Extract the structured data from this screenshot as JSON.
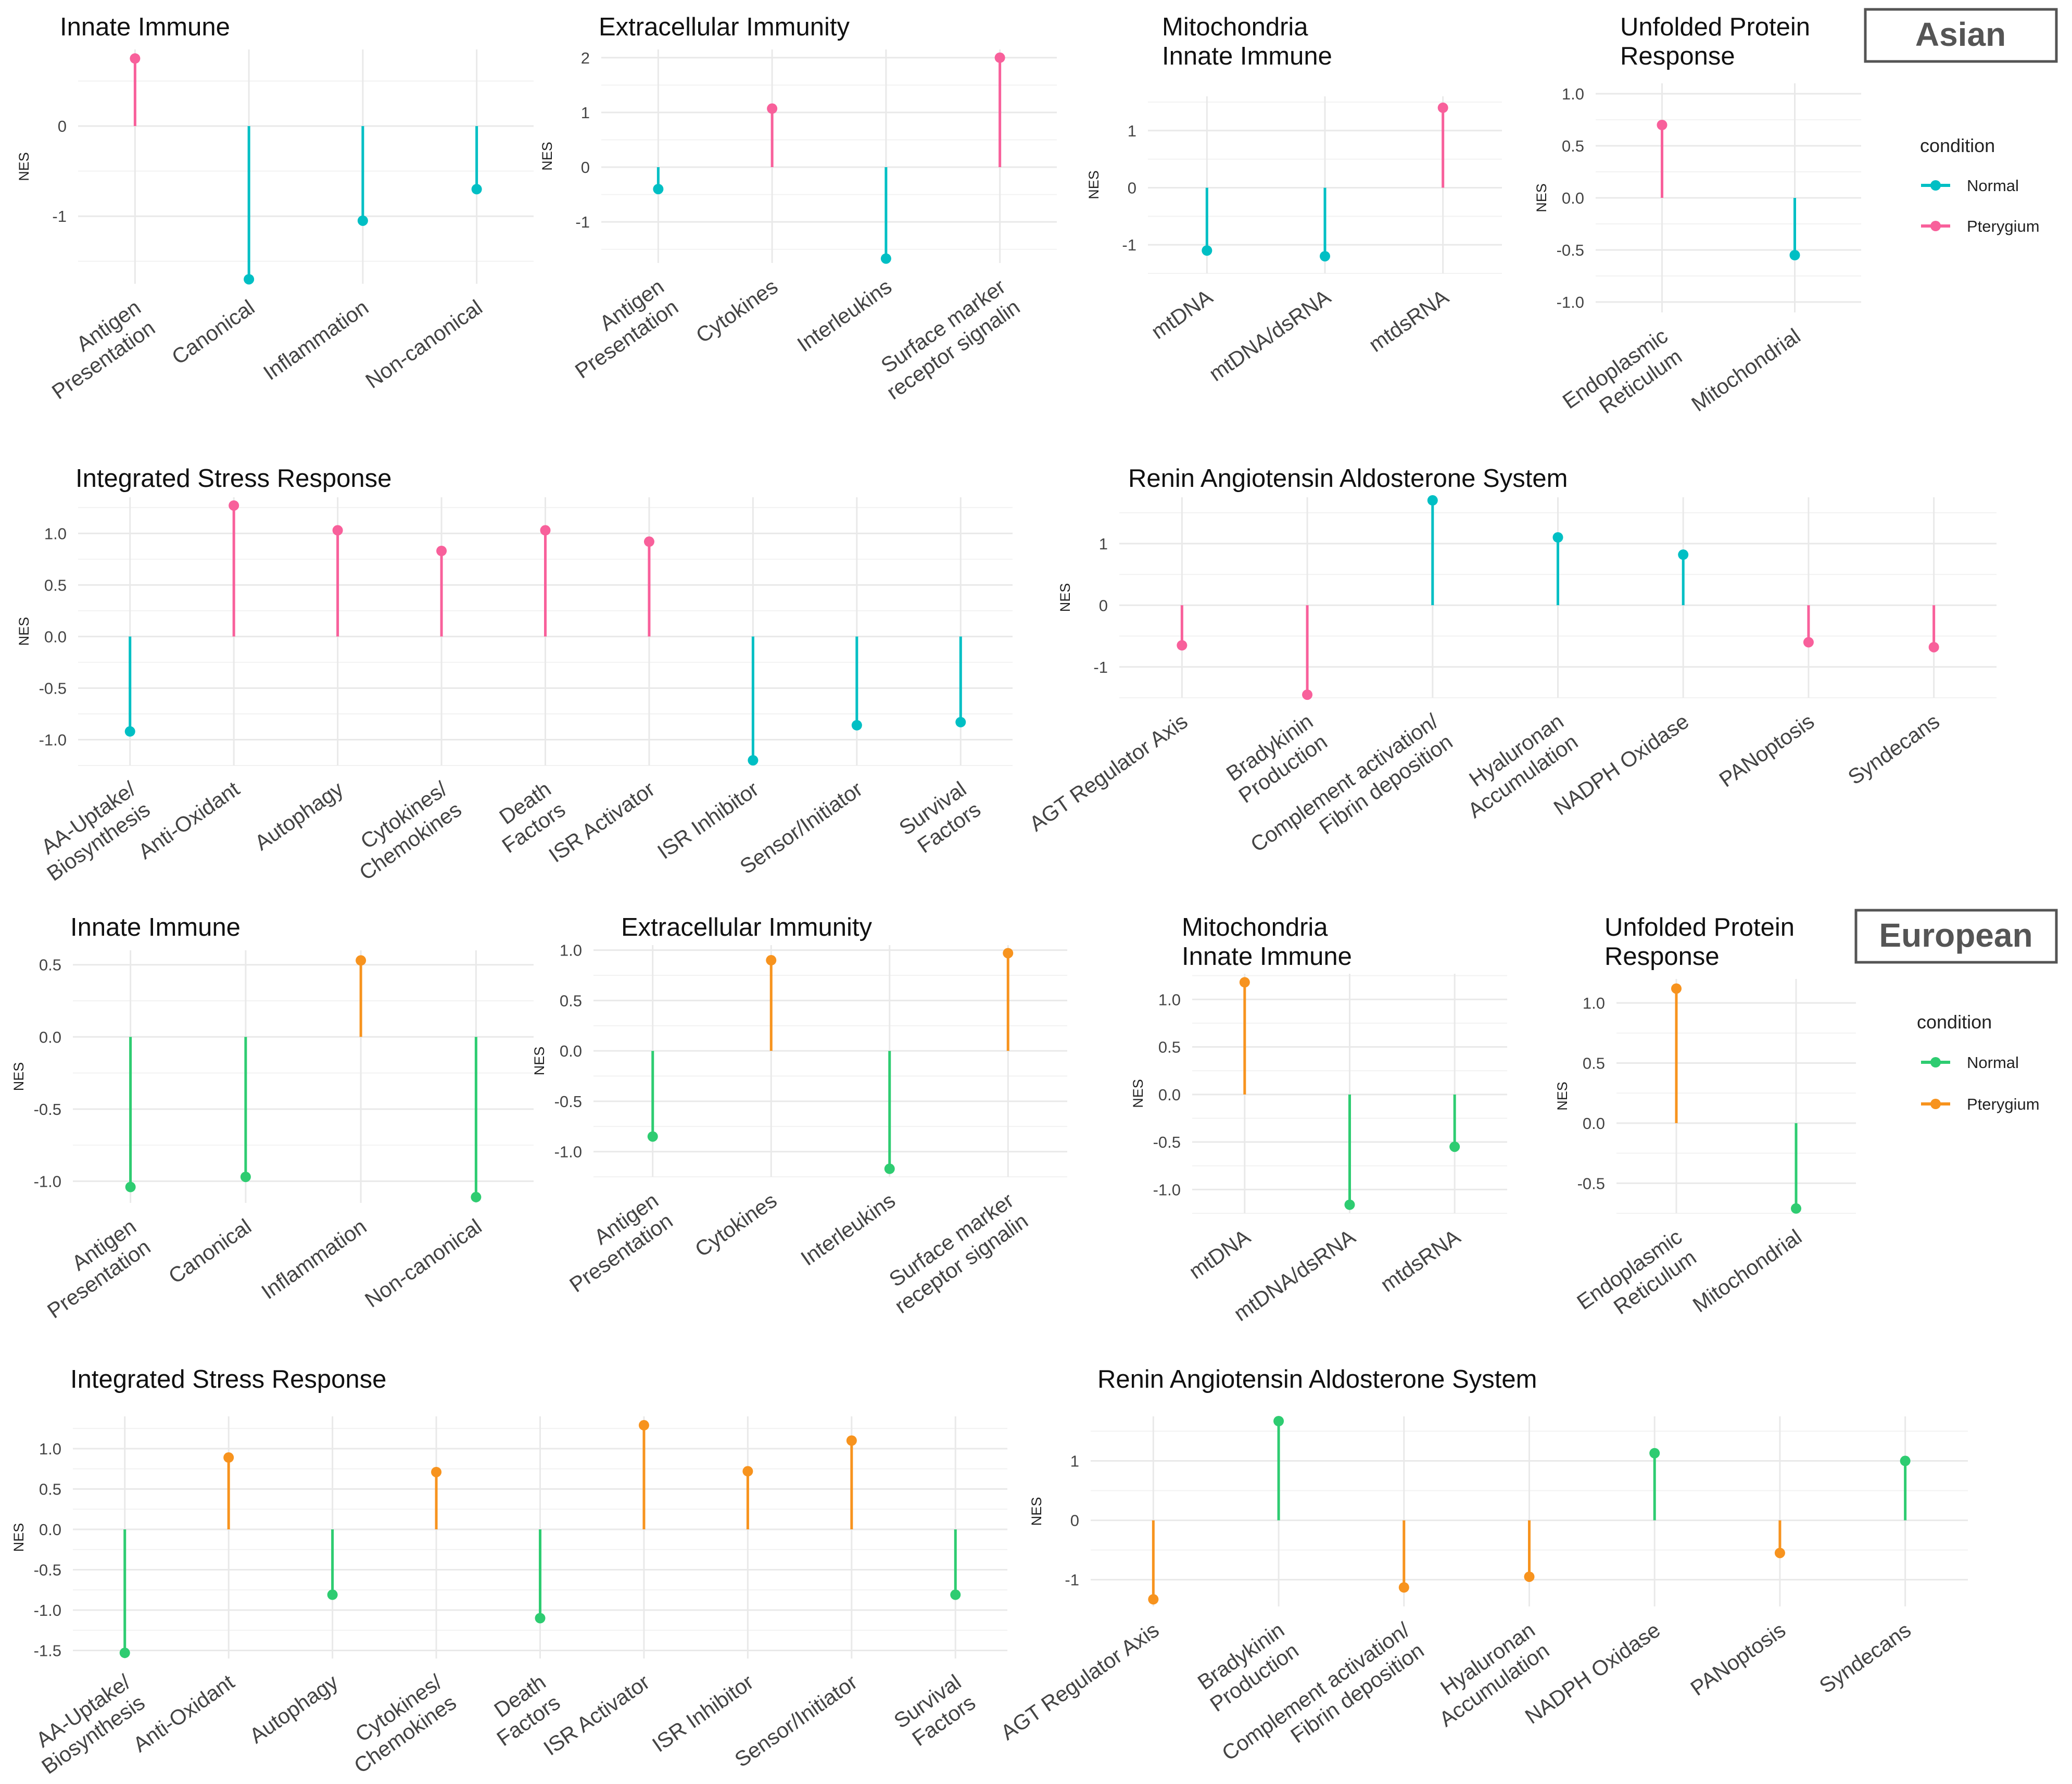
{
  "colors": {
    "asian_normal": "#00bfc4",
    "asian_pterygium": "#f8609b",
    "european_normal": "#2ecc71",
    "european_pterygium": "#f7931e",
    "grid": "#e9e9e9",
    "text": "#222222",
    "tick_text": "#444444"
  },
  "groups": [
    {
      "label": "Asian",
      "legend": {
        "title": "condition",
        "items": [
          "Normal",
          "Pterygium"
        ]
      }
    },
    {
      "label": "European",
      "legend": {
        "title": "condition",
        "items": [
          "Normal",
          "Pterygium"
        ]
      }
    }
  ],
  "chart_data": [
    {
      "type": "lollipop",
      "group": "Asian",
      "title": [
        "Innate Immune"
      ],
      "ylabel": "NES",
      "categories": [
        [
          "Antigen",
          "Presentation"
        ],
        [
          "Canonical"
        ],
        [
          "Inflammation"
        ],
        [
          "Non-canonical"
        ]
      ],
      "values": [
        0.75,
        -1.7,
        -1.05,
        -0.7
      ],
      "condition": [
        "Pterygium",
        "Normal",
        "Normal",
        "Normal"
      ],
      "ylim": [
        -1.75,
        0.85
      ],
      "yticks": [
        0,
        -1
      ],
      "ytick_labels": [
        "0",
        "-1"
      ]
    },
    {
      "type": "lollipop",
      "group": "Asian",
      "title": [
        "Extracellular Immunity"
      ],
      "ylabel": "NES",
      "categories": [
        [
          "Antigen",
          "Presentation"
        ],
        [
          "Cytokines"
        ],
        [
          "Interleukins"
        ],
        [
          "Surface marker",
          "receptor signalin"
        ]
      ],
      "values": [
        -0.4,
        1.07,
        -1.67,
        2.0
      ],
      "condition": [
        "Normal",
        "Pterygium",
        "Normal",
        "Pterygium"
      ],
      "ylim": [
        -1.75,
        2.15
      ],
      "yticks": [
        2,
        1,
        0,
        -1
      ],
      "ytick_labels": [
        "2",
        "1",
        "0",
        "-1"
      ]
    },
    {
      "type": "lollipop",
      "group": "Asian",
      "title": [
        "Mitochondria",
        "Innate Immune"
      ],
      "ylabel": "NES",
      "categories": [
        [
          "mtDNA"
        ],
        [
          "mtDNA/dsRNA"
        ],
        [
          "mtdsRNA"
        ]
      ],
      "values": [
        -1.1,
        -1.2,
        1.4
      ],
      "condition": [
        "Normal",
        "Normal",
        "Pterygium"
      ],
      "ylim": [
        -1.5,
        1.6
      ],
      "yticks": [
        1,
        0,
        -1
      ],
      "ytick_labels": [
        "1",
        "0",
        "-1"
      ]
    },
    {
      "type": "lollipop",
      "group": "Asian",
      "title": [
        "Unfolded Protein",
        "Response"
      ],
      "ylabel": "NES",
      "categories": [
        [
          "Endoplasmic",
          "Reticulum"
        ],
        [
          "Mitochondrial"
        ]
      ],
      "values": [
        0.7,
        -0.55
      ],
      "condition": [
        "Pterygium",
        "Normal"
      ],
      "ylim": [
        -1.1,
        1.1
      ],
      "yticks": [
        1,
        0.5,
        0,
        -0.5,
        -1
      ],
      "ytick_labels": [
        "1.0",
        "0.5",
        "0.0",
        "-0.5",
        "-1.0"
      ]
    },
    {
      "type": "lollipop",
      "group": "Asian",
      "title": [
        "Integrated Stress Response"
      ],
      "ylabel": "NES",
      "categories": [
        [
          "AA-Uptake/",
          "Biosynthesis"
        ],
        [
          "Anti-Oxidant"
        ],
        [
          "Autophagy"
        ],
        [
          "Cytokines/",
          "Chemokines"
        ],
        [
          "Death",
          "Factors"
        ],
        [
          "ISR Activator"
        ],
        [
          "ISR Inhibitor"
        ],
        [
          "Sensor/Initiator"
        ],
        [
          "Survival",
          "Factors"
        ]
      ],
      "values": [
        -0.92,
        1.27,
        1.03,
        0.83,
        1.03,
        0.92,
        -1.2,
        -0.86,
        -0.83
      ],
      "condition": [
        "Normal",
        "Pterygium",
        "Pterygium",
        "Pterygium",
        "Pterygium",
        "Pterygium",
        "Normal",
        "Normal",
        "Normal"
      ],
      "ylim": [
        -1.25,
        1.35
      ],
      "yticks": [
        1,
        0.5,
        0,
        -0.5,
        -1
      ],
      "ytick_labels": [
        "1.0",
        "0.5",
        "0.0",
        "-0.5",
        "-1.0"
      ]
    },
    {
      "type": "lollipop",
      "group": "Asian",
      "title": [
        "Renin Angiotensin Aldosterone System"
      ],
      "ylabel": "NES",
      "categories": [
        [
          "AGT Regulator Axis"
        ],
        [
          "Bradykinin",
          "Production"
        ],
        [
          "Complement activation/",
          "Fibrin deposition"
        ],
        [
          "Hyaluronan",
          "Accumulation"
        ],
        [
          "NADPH Oxidase"
        ],
        [
          "PANoptosis"
        ],
        [
          "Syndecans"
        ]
      ],
      "values": [
        -0.65,
        -1.45,
        1.7,
        1.1,
        0.82,
        -0.6,
        -0.68
      ],
      "condition": [
        "Pterygium",
        "Pterygium",
        "Normal",
        "Normal",
        "Normal",
        "Pterygium",
        "Pterygium"
      ],
      "ylim": [
        -1.5,
        1.75
      ],
      "yticks": [
        1,
        0,
        -1
      ],
      "ytick_labels": [
        "1",
        "0",
        "-1"
      ]
    },
    {
      "type": "lollipop",
      "group": "European",
      "title": [
        "Innate Immune"
      ],
      "ylabel": "NES",
      "categories": [
        [
          "Antigen",
          "Presentation"
        ],
        [
          "Canonical"
        ],
        [
          "Inflammation"
        ],
        [
          "Non-canonical"
        ]
      ],
      "values": [
        -1.04,
        -0.97,
        0.53,
        -1.11
      ],
      "condition": [
        "Normal",
        "Normal",
        "Pterygium",
        "Normal"
      ],
      "ylim": [
        -1.15,
        0.6
      ],
      "yticks": [
        0.5,
        0,
        -0.5,
        -1
      ],
      "ytick_labels": [
        "0.5",
        "0.0",
        "-0.5",
        "-1.0"
      ]
    },
    {
      "type": "lollipop",
      "group": "European",
      "title": [
        "Extracellular Immunity"
      ],
      "ylabel": "NES",
      "categories": [
        [
          "Antigen",
          "Presentation"
        ],
        [
          "Cytokines"
        ],
        [
          "Interleukins"
        ],
        [
          "Surface marker",
          "receptor signalin"
        ]
      ],
      "values": [
        -0.85,
        0.9,
        -1.17,
        0.97
      ],
      "condition": [
        "Normal",
        "Pterygium",
        "Normal",
        "Pterygium"
      ],
      "ylim": [
        -1.25,
        1.05
      ],
      "yticks": [
        1,
        0.5,
        0,
        -0.5,
        -1
      ],
      "ytick_labels": [
        "1.0",
        "0.5",
        "0.0",
        "-0.5",
        "-1.0"
      ]
    },
    {
      "type": "lollipop",
      "group": "European",
      "title": [
        "Mitochondria",
        "Innate Immune"
      ],
      "ylabel": "NES",
      "categories": [
        [
          "mtDNA"
        ],
        [
          "mtDNA/dsRNA"
        ],
        [
          "mtdsRNA"
        ]
      ],
      "values": [
        1.18,
        -1.16,
        -0.55
      ],
      "condition": [
        "Pterygium",
        "Normal",
        "Normal"
      ],
      "ylim": [
        -1.25,
        1.27
      ],
      "yticks": [
        1,
        0.5,
        0,
        -0.5,
        -1
      ],
      "ytick_labels": [
        "1.0",
        "0.5",
        "0.0",
        "-0.5",
        "-1.0"
      ]
    },
    {
      "type": "lollipop",
      "group": "European",
      "title": [
        "Unfolded Protein",
        "Response"
      ],
      "ylabel": "NES",
      "categories": [
        [
          "Endoplasmic",
          "Reticulum"
        ],
        [
          "Mitochondrial"
        ]
      ],
      "values": [
        1.12,
        -0.71
      ],
      "condition": [
        "Pterygium",
        "Normal"
      ],
      "ylim": [
        -0.75,
        1.2
      ],
      "yticks": [
        1,
        0.5,
        0,
        -0.5
      ],
      "ytick_labels": [
        "1.0",
        "0.5",
        "0.0",
        "-0.5"
      ]
    },
    {
      "type": "lollipop",
      "group": "European",
      "title": [
        "Integrated Stress Response"
      ],
      "ylabel": "NES",
      "categories": [
        [
          "AA-Uptake/",
          "Biosynthesis"
        ],
        [
          "Anti-Oxidant"
        ],
        [
          "Autophagy"
        ],
        [
          "Cytokines/",
          "Chemokines"
        ],
        [
          "Death",
          "Factors"
        ],
        [
          "ISR Activator"
        ],
        [
          "ISR Inhibitor"
        ],
        [
          "Sensor/Initiator"
        ],
        [
          "Survival",
          "Factors"
        ]
      ],
      "values": [
        -1.53,
        0.89,
        -0.81,
        0.71,
        -1.1,
        1.29,
        0.72,
        1.1,
        -0.81
      ],
      "condition": [
        "Normal",
        "Pterygium",
        "Normal",
        "Pterygium",
        "Normal",
        "Pterygium",
        "Pterygium",
        "Pterygium",
        "Normal"
      ],
      "ylim": [
        -1.6,
        1.4
      ],
      "yticks": [
        1,
        0.5,
        0,
        -0.5,
        -1,
        -1.5
      ],
      "ytick_labels": [
        "1.0",
        "0.5",
        "0.0",
        "-0.5",
        "-1.0",
        "-1.5"
      ]
    },
    {
      "type": "lollipop",
      "group": "European",
      "title": [
        "Renin Angiotensin Aldosterone System"
      ],
      "ylabel": "NES",
      "categories": [
        [
          "AGT Regulator Axis"
        ],
        [
          "Bradykinin",
          "Production"
        ],
        [
          "Complement activation/",
          "Fibrin deposition"
        ],
        [
          "Hyaluronan",
          "Accumulation"
        ],
        [
          "NADPH Oxidase"
        ],
        [
          "PANoptosis"
        ],
        [
          "Syndecans"
        ]
      ],
      "values": [
        -1.33,
        1.67,
        -1.13,
        -0.95,
        1.13,
        -0.55,
        1.0
      ],
      "condition": [
        "Pterygium",
        "Normal",
        "Pterygium",
        "Pterygium",
        "Normal",
        "Pterygium",
        "Normal"
      ],
      "ylim": [
        -1.45,
        1.75
      ],
      "yticks": [
        1,
        0,
        -1
      ],
      "ytick_labels": [
        "1",
        "0",
        "-1"
      ]
    }
  ]
}
